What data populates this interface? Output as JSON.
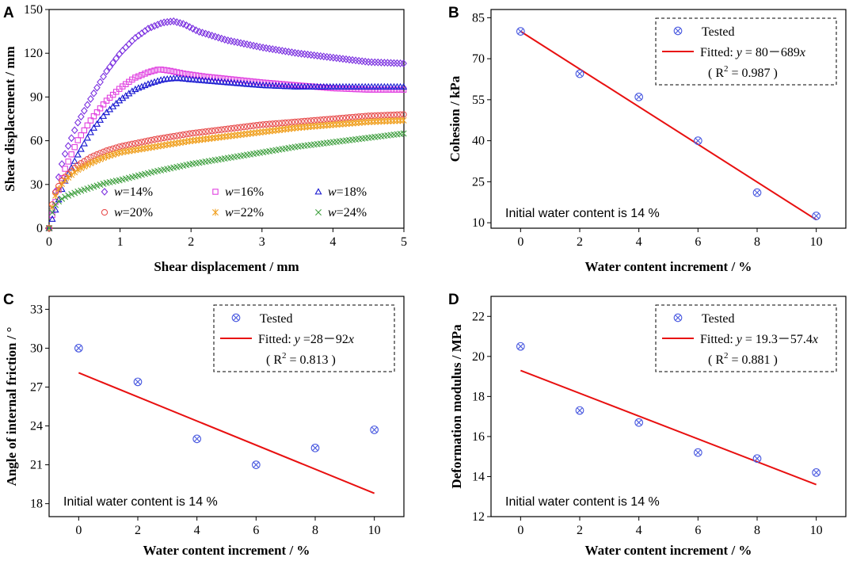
{
  "chart_data": [
    {
      "panel": "A",
      "type": "scatter",
      "xlabel": "Shear displacement / mm",
      "ylabel": "Shear displacement / mm",
      "xlim": [
        0,
        5
      ],
      "ylim": [
        0,
        150
      ],
      "xticks": [
        0,
        1,
        2,
        3,
        4,
        5
      ],
      "yticks": [
        0,
        30,
        60,
        90,
        120,
        150
      ],
      "legend_var": "w",
      "series": [
        {
          "name": "=14%",
          "marker": "diamond",
          "color": "#7a2fe0",
          "x": [
            0,
            0.1,
            0.2,
            0.4,
            0.6,
            0.8,
            1.0,
            1.2,
            1.4,
            1.6,
            1.75,
            1.9,
            2.1,
            2.5,
            3.0,
            3.5,
            4.0,
            4.5,
            5.0
          ],
          "y": [
            0,
            28,
            48,
            72,
            90,
            107,
            120,
            130,
            137,
            141,
            142,
            140,
            135,
            129,
            124,
            120,
            117,
            114,
            113
          ]
        },
        {
          "name": "=16%",
          "marker": "square",
          "color": "#e040e0",
          "x": [
            0,
            0.1,
            0.2,
            0.4,
            0.6,
            0.8,
            1.0,
            1.2,
            1.4,
            1.55,
            1.7,
            1.9,
            2.2,
            2.6,
            3.0,
            3.5,
            4.0,
            4.5,
            5.0
          ],
          "y": [
            0,
            20,
            38,
            60,
            75,
            87,
            96,
            103,
            107,
            109,
            108,
            106,
            104,
            102,
            100,
            98,
            96,
            95,
            95
          ]
        },
        {
          "name": "=18%",
          "marker": "triangle",
          "color": "#1515d0",
          "x": [
            0,
            0.1,
            0.2,
            0.4,
            0.6,
            0.8,
            1.0,
            1.2,
            1.4,
            1.6,
            1.8,
            2.0,
            2.5,
            3.0,
            3.5,
            4.0,
            4.5,
            5.0
          ],
          "y": [
            0,
            14,
            30,
            50,
            67,
            79,
            88,
            95,
            99,
            102,
            103,
            102,
            100,
            98,
            97,
            97,
            97,
            97
          ]
        },
        {
          "name": "=20%",
          "marker": "circle",
          "color": "#e85050",
          "x": [
            0,
            0.05,
            0.1,
            0.2,
            0.4,
            0.6,
            0.8,
            1.0,
            1.5,
            2.0,
            2.5,
            3.0,
            3.5,
            4.0,
            4.5,
            5.0
          ],
          "y": [
            0,
            18,
            26,
            34,
            43,
            49,
            53,
            56,
            61,
            65,
            68,
            71,
            73,
            75,
            77,
            78
          ]
        },
        {
          "name": "=22%",
          "marker": "star",
          "color": "#f0a020",
          "x": [
            0,
            0.05,
            0.1,
            0.2,
            0.4,
            0.6,
            0.8,
            1.0,
            1.5,
            2.0,
            2.5,
            3.0,
            3.5,
            4.0,
            4.5,
            5.0
          ],
          "y": [
            0,
            16,
            24,
            32,
            40,
            45,
            49,
            52,
            56,
            60,
            63,
            66,
            69,
            71,
            73,
            74
          ]
        },
        {
          "name": "=24%",
          "marker": "cross",
          "color": "#40a040",
          "x": [
            0,
            0.05,
            0.1,
            0.2,
            0.4,
            0.6,
            0.8,
            1.0,
            1.5,
            2.0,
            2.5,
            3.0,
            3.5,
            4.0,
            4.5,
            5.0
          ],
          "y": [
            0,
            12,
            17,
            21,
            25,
            28,
            31,
            33,
            39,
            44,
            48,
            52,
            56,
            59,
            62,
            65
          ]
        }
      ]
    },
    {
      "panel": "B",
      "type": "scatter",
      "xlabel": "Water content increment / %",
      "ylabel": "Cohesion / kPa",
      "xlim": [
        -1,
        11
      ],
      "ylim": [
        8,
        88
      ],
      "xticks": [
        0,
        2,
        4,
        6,
        8,
        10
      ],
      "yticks": [
        10,
        25,
        40,
        55,
        70,
        85
      ],
      "tested": {
        "x": [
          0,
          2,
          4,
          6,
          8,
          10
        ],
        "y": [
          80,
          64.5,
          56,
          40,
          21,
          12.5
        ]
      },
      "fit": {
        "x": [
          0,
          10
        ],
        "y": [
          80,
          11.1
        ]
      },
      "legend": {
        "tested": "Tested",
        "fitted_prefix": "Fitted: ",
        "fitted_eq": "y",
        "fitted_rest": " = 80－689",
        "fitted_var": "x",
        "r2_pre": "( R",
        "r2_sup": "2",
        "r2_post": " = 0.987 )"
      },
      "note": "Initial water content is 14 %"
    },
    {
      "panel": "C",
      "type": "scatter",
      "xlabel": "Water content increment / %",
      "ylabel": "Angle of internal friction / °",
      "xlim": [
        -1,
        11
      ],
      "ylim": [
        17,
        34
      ],
      "xticks": [
        0,
        2,
        4,
        6,
        8,
        10
      ],
      "yticks": [
        18,
        21,
        24,
        27,
        30,
        33
      ],
      "tested": {
        "x": [
          0,
          2,
          4,
          6,
          8,
          10
        ],
        "y": [
          30,
          27.4,
          23,
          21,
          22.3,
          23.7
        ]
      },
      "fit": {
        "x": [
          0,
          10
        ],
        "y": [
          28.1,
          18.8
        ]
      },
      "legend": {
        "tested": "Tested",
        "fitted_prefix": "Fitted: ",
        "fitted_eq": "y",
        "fitted_rest": " =28－92",
        "fitted_var": "x",
        "r2_pre": "( R",
        "r2_sup": "2",
        "r2_post": " = 0.813 )"
      },
      "note": "Initial water content is 14 %"
    },
    {
      "panel": "D",
      "type": "scatter",
      "xlabel": "Water content increment / %",
      "ylabel": "Deformation modulus / MPa",
      "xlim": [
        -1,
        11
      ],
      "ylim": [
        12,
        23
      ],
      "xticks": [
        0,
        2,
        4,
        6,
        8,
        10
      ],
      "yticks": [
        12,
        14,
        16,
        18,
        20,
        22
      ],
      "tested": {
        "x": [
          0,
          2,
          4,
          6,
          8,
          10
        ],
        "y": [
          20.5,
          17.3,
          16.7,
          15.2,
          14.9,
          14.2
        ]
      },
      "fit": {
        "x": [
          0,
          10
        ],
        "y": [
          19.3,
          13.6
        ]
      },
      "legend": {
        "tested": "Tested",
        "fitted_prefix": "Fitted: ",
        "fitted_eq": "y",
        "fitted_rest": " = 19.3－57.4",
        "fitted_var": "x",
        "r2_pre": "( R",
        "r2_sup": "2",
        "r2_post": " = 0.881 )"
      },
      "note": "Initial water content is 14 %"
    }
  ],
  "colors": {
    "tested_marker": "#4a5ae0",
    "fit_line": "#e81010",
    "axis": "#000000"
  }
}
